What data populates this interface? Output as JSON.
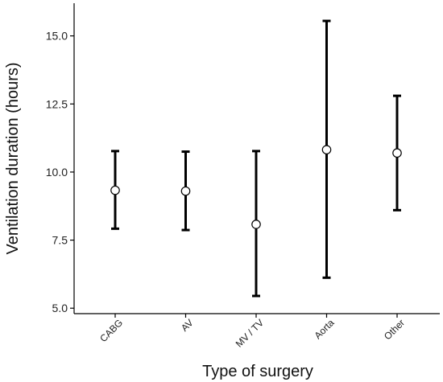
{
  "chart_data": {
    "type": "errorbar",
    "title": "",
    "xlabel": "Type of surgery",
    "ylabel": "Ventilation duration (hours)",
    "categories": [
      "CABG",
      "AV",
      "MV / TV",
      "Aorta",
      "Other"
    ],
    "estimate": [
      9.33,
      9.3,
      8.08,
      10.82,
      10.7
    ],
    "lower": [
      7.92,
      7.87,
      5.45,
      6.12,
      8.6
    ],
    "upper": [
      10.77,
      10.75,
      10.77,
      15.55,
      12.8
    ],
    "ylim": [
      4.8,
      16.2
    ],
    "yticks": [
      5.0,
      7.5,
      10.0,
      12.5,
      15.0
    ],
    "ytick_labels": [
      "5.0",
      "7.5",
      "10.0",
      "12.5",
      "15.0"
    ],
    "grid": false,
    "marker": "open-circle"
  }
}
